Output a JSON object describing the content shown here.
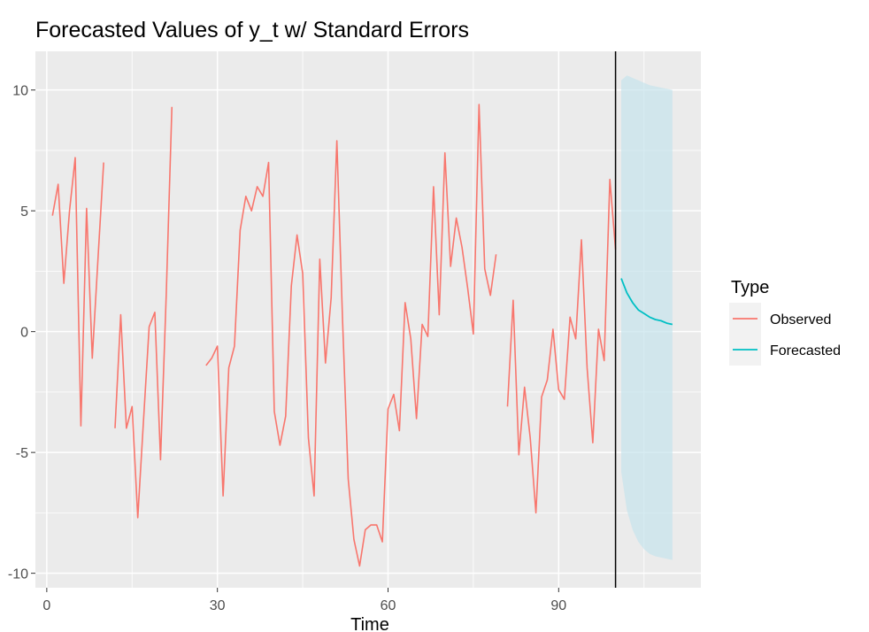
{
  "chart_data": {
    "type": "line",
    "title": "Forecasted Values of y_t w/ Standard Errors",
    "xlabel": "Time",
    "ylabel": "",
    "xlim": [
      -2,
      115
    ],
    "ylim": [
      -10.6,
      11.6
    ],
    "x_ticks": [
      0,
      30,
      60,
      90
    ],
    "x_tick_labels": [
      "0",
      "30",
      "60",
      "90"
    ],
    "y_ticks": [
      -10,
      -5,
      0,
      5,
      10
    ],
    "y_tick_labels": [
      "-10",
      "-5",
      "0",
      "5",
      "10"
    ],
    "grid": true,
    "vline_x": 100,
    "legend": {
      "title": "Type",
      "position": "right",
      "entries": [
        "Observed",
        "Forecasted"
      ]
    },
    "series": [
      {
        "name": "Observed",
        "color": "#f8766d",
        "segments": [
          {
            "x": [
              1,
              2,
              3,
              4,
              5,
              6,
              7,
              8,
              9,
              10
            ],
            "y": [
              4.8,
              6.1,
              2.0,
              5.0,
              7.2,
              -3.9,
              5.1,
              -1.1,
              3.0,
              7.0
            ]
          },
          {
            "x": [
              12,
              13,
              14,
              15,
              16,
              17,
              18,
              19,
              20,
              21,
              22
            ],
            "y": [
              -4.0,
              0.7,
              -4.0,
              -3.1,
              -7.7,
              -3.7,
              0.2,
              0.8,
              -5.3,
              1.5,
              9.3
            ]
          },
          {
            "x": [
              28,
              29,
              30,
              31,
              32,
              33,
              34,
              35,
              36,
              37,
              38,
              39,
              40,
              41,
              42,
              43,
              44,
              45,
              46,
              47,
              48,
              49,
              50,
              51,
              52,
              53,
              54,
              55,
              56,
              57,
              58,
              59,
              60,
              61,
              62,
              63,
              64,
              65,
              66,
              67,
              68,
              69,
              70,
              71,
              72,
              73,
              74,
              75,
              76,
              77,
              78,
              79
            ],
            "y": [
              -1.4,
              -1.1,
              -0.6,
              -6.8,
              -1.5,
              -0.6,
              4.2,
              5.6,
              5.0,
              6.0,
              5.6,
              7.0,
              -3.3,
              -4.7,
              -3.5,
              1.9,
              4.0,
              2.4,
              -4.4,
              -6.8,
              3.0,
              -1.3,
              1.4,
              7.9,
              0.5,
              -6.1,
              -8.6,
              -9.7,
              -8.2,
              -8.0,
              -8.0,
              -8.7,
              -3.2,
              -2.6,
              -4.1,
              1.2,
              -0.3,
              -3.6,
              0.3,
              -0.2,
              6.0,
              0.7,
              7.4,
              2.7,
              4.7,
              3.5,
              1.8,
              -0.1,
              9.4,
              2.6,
              1.5,
              3.2
            ]
          },
          {
            "x": [
              81,
              82,
              83,
              84,
              85,
              86,
              87,
              88,
              89,
              90,
              91,
              92,
              93,
              94,
              95,
              96,
              97,
              98,
              99,
              100
            ],
            "y": [
              -3.1,
              1.3,
              -5.1,
              -2.3,
              -4.4,
              -7.5,
              -2.7,
              -2.0,
              0.1,
              -2.4,
              -2.8,
              0.6,
              -0.3,
              3.8,
              -1.5,
              -4.6,
              0.1,
              -1.2,
              6.3,
              3.4
            ]
          }
        ]
      },
      {
        "name": "Forecasted",
        "color": "#00bfc4",
        "x": [
          101,
          102,
          103,
          104,
          105,
          106,
          107,
          108,
          109,
          110
        ],
        "y": [
          2.2,
          1.6,
          1.2,
          0.9,
          0.75,
          0.6,
          0.5,
          0.45,
          0.35,
          0.3
        ],
        "upper": [
          10.4,
          10.6,
          10.5,
          10.4,
          10.3,
          10.2,
          10.15,
          10.1,
          10.05,
          10.0
        ],
        "lower": [
          -5.8,
          -7.4,
          -8.2,
          -8.7,
          -9.0,
          -9.2,
          -9.3,
          -9.35,
          -9.4,
          -9.45
        ]
      }
    ]
  }
}
